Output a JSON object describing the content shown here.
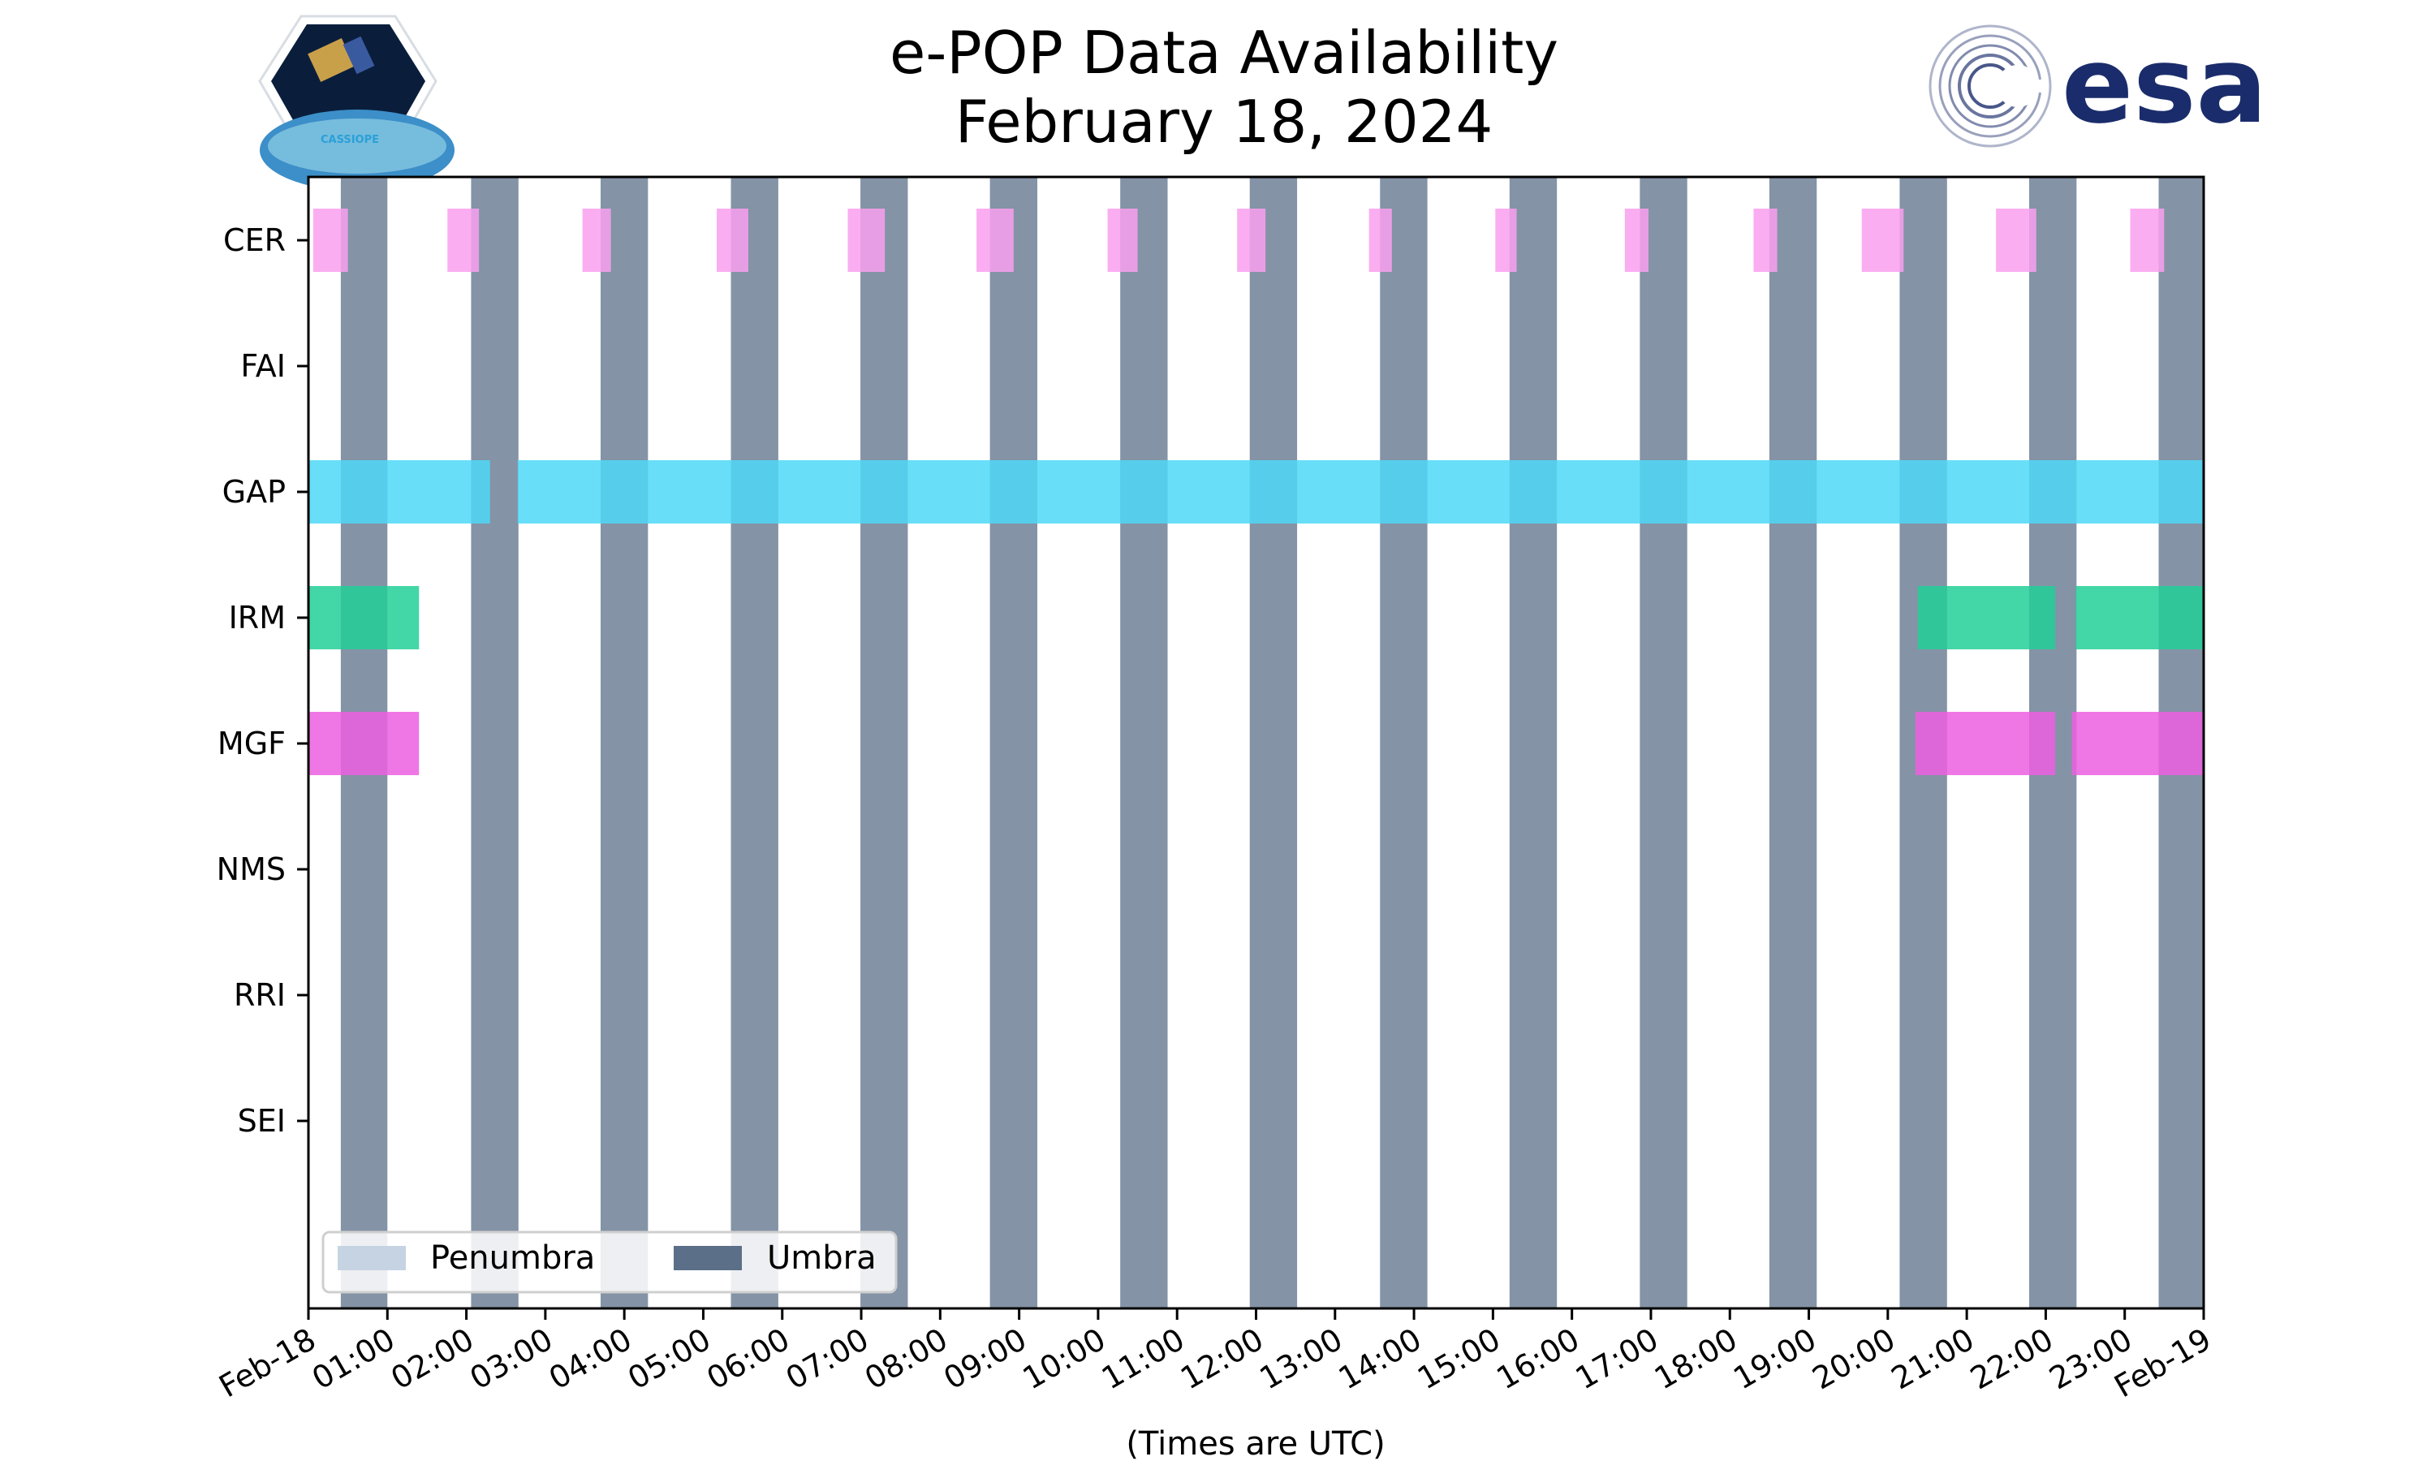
{
  "chart_data": {
    "type": "timeline",
    "title_line1": "e-POP Data Availability",
    "title_line2": "February 18, 2024",
    "xlabel": "(Times are UTC)",
    "x_range_hours": [
      0,
      24
    ],
    "x_ticks": [
      {
        "hour": 0,
        "label": "Feb-18"
      },
      {
        "hour": 1,
        "label": "01:00"
      },
      {
        "hour": 2,
        "label": "02:00"
      },
      {
        "hour": 3,
        "label": "03:00"
      },
      {
        "hour": 4,
        "label": "04:00"
      },
      {
        "hour": 5,
        "label": "05:00"
      },
      {
        "hour": 6,
        "label": "06:00"
      },
      {
        "hour": 7,
        "label": "07:00"
      },
      {
        "hour": 8,
        "label": "08:00"
      },
      {
        "hour": 9,
        "label": "09:00"
      },
      {
        "hour": 10,
        "label": "10:00"
      },
      {
        "hour": 11,
        "label": "11:00"
      },
      {
        "hour": 12,
        "label": "12:00"
      },
      {
        "hour": 13,
        "label": "13:00"
      },
      {
        "hour": 14,
        "label": "14:00"
      },
      {
        "hour": 15,
        "label": "15:00"
      },
      {
        "hour": 16,
        "label": "16:00"
      },
      {
        "hour": 17,
        "label": "17:00"
      },
      {
        "hour": 18,
        "label": "18:00"
      },
      {
        "hour": 19,
        "label": "19:00"
      },
      {
        "hour": 20,
        "label": "20:00"
      },
      {
        "hour": 21,
        "label": "21:00"
      },
      {
        "hour": 22,
        "label": "22:00"
      },
      {
        "hour": 23,
        "label": "23:00"
      },
      {
        "hour": 24,
        "label": "Feb-19"
      }
    ],
    "instruments": [
      "CER",
      "FAI",
      "GAP",
      "IRM",
      "MGF",
      "NMS",
      "RRI",
      "SEI"
    ],
    "legend": {
      "placement": "lower-left",
      "entries": [
        {
          "label": "Penumbra",
          "color": "#c6d3e3"
        },
        {
          "label": "Umbra",
          "color": "#5b6f88"
        }
      ]
    },
    "umbra_intervals": [
      [
        0.41,
        1.0
      ],
      [
        2.06,
        2.66
      ],
      [
        3.7,
        4.3
      ],
      [
        5.35,
        5.95
      ],
      [
        6.99,
        7.59
      ],
      [
        8.63,
        9.23
      ],
      [
        10.28,
        10.88
      ],
      [
        11.92,
        12.52
      ],
      [
        13.57,
        14.17
      ],
      [
        15.21,
        15.81
      ],
      [
        16.86,
        17.46
      ],
      [
        18.5,
        19.1
      ],
      [
        20.15,
        20.75
      ],
      [
        21.79,
        22.39
      ],
      [
        23.43,
        24.0
      ]
    ],
    "series": [
      {
        "instrument": "CER",
        "color": "#f9a0ee",
        "intervals": [
          [
            0.06,
            0.5
          ],
          [
            1.76,
            2.16
          ],
          [
            3.47,
            3.83
          ],
          [
            5.17,
            5.57
          ],
          [
            6.83,
            7.3
          ],
          [
            8.46,
            8.93
          ],
          [
            10.12,
            10.5
          ],
          [
            11.76,
            12.12
          ],
          [
            13.43,
            13.72
          ],
          [
            15.03,
            15.3
          ],
          [
            16.67,
            16.97
          ],
          [
            18.3,
            18.6
          ],
          [
            19.67,
            20.2
          ],
          [
            21.37,
            21.88
          ],
          [
            23.07,
            23.5
          ]
        ]
      },
      {
        "instrument": "FAI",
        "color": "#999999",
        "intervals": []
      },
      {
        "instrument": "GAP",
        "color": "#4dd8f7",
        "intervals": [
          [
            0.0,
            2.3
          ],
          [
            2.65,
            24.0
          ]
        ]
      },
      {
        "instrument": "IRM",
        "color": "#22cf98",
        "intervals": [
          [
            0.0,
            1.4
          ],
          [
            20.38,
            22.12
          ],
          [
            22.38,
            24.0
          ]
        ]
      },
      {
        "instrument": "MGF",
        "color": "#ec5fe0",
        "intervals": [
          [
            0.0,
            1.4
          ],
          [
            20.35,
            22.12
          ],
          [
            22.33,
            24.0
          ]
        ]
      },
      {
        "instrument": "NMS",
        "color": "#999999",
        "intervals": []
      },
      {
        "instrument": "RRI",
        "color": "#999999",
        "intervals": []
      },
      {
        "instrument": "SEI",
        "color": "#999999",
        "intervals": []
      }
    ]
  },
  "logos": {
    "left": {
      "name": "CASSIOPE",
      "text": "CASSIOPE"
    },
    "right": {
      "name": "esa",
      "text": "esa",
      "color": "#1a2c6b"
    }
  }
}
